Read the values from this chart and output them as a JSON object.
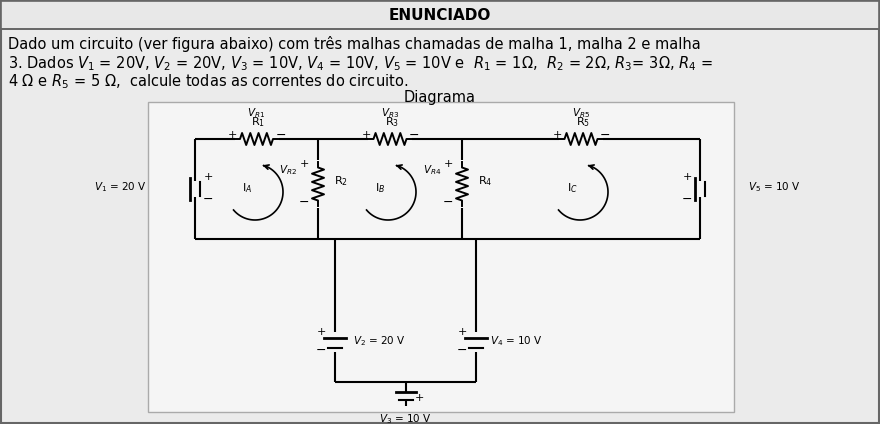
{
  "title": "ENUNCIADO",
  "title_bg": "#e8e8e8",
  "body_bg": "#ebebeb",
  "circuit_bg": "#e8e8e8",
  "border_color": "#888888",
  "line1": "Dado um circuito (ver figura abaixo) com três malhas chamadas de malha 1, malha 2 e malha",
  "line2": "3. Dados V",
  "line2b": " = 20V, V",
  "line2c": " = 20V, V",
  "line2d": " = 10V, V",
  "line2e": " = 10V, V",
  "line2f": " = 10V e  R",
  "line2g": " = 1Ω,  R",
  "line2h": " = 2Ω, R",
  "line2i": "= 3Ω, R",
  "line2j": " =",
  "line3": "4 Ω e R",
  "line3b": " = 5 Ω,  calcule todas as correntes do circuito.",
  "diagrama": "Diagrama",
  "font_body": 10.5,
  "font_title": 11,
  "font_small": 8.5
}
